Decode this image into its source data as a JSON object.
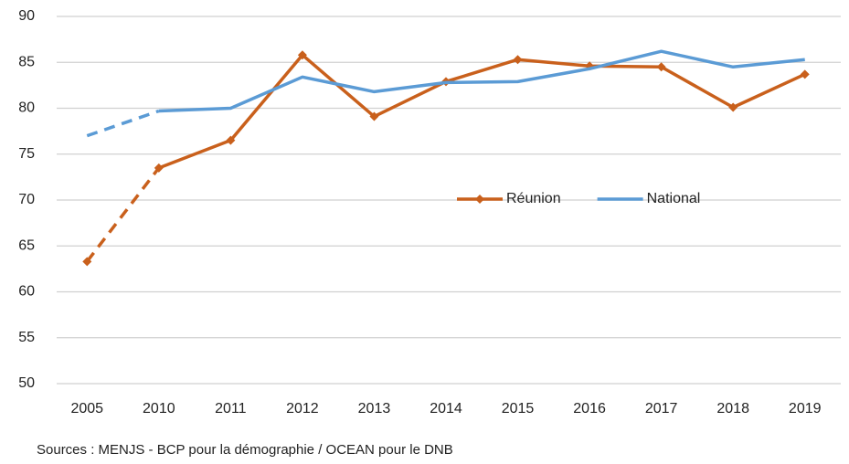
{
  "chart_data": {
    "type": "line",
    "categories": [
      "2005",
      "2010",
      "2011",
      "2012",
      "2013",
      "2014",
      "2015",
      "2016",
      "2017",
      "2018",
      "2019"
    ],
    "series": [
      {
        "name": "Réunion",
        "color": "#c9601c",
        "marker": true,
        "dashed_segments": [
          0
        ],
        "values": [
          63.3,
          73.5,
          76.5,
          85.8,
          79.1,
          82.9,
          85.3,
          84.6,
          84.5,
          80.1,
          83.7
        ]
      },
      {
        "name": "National",
        "color": "#5b9bd5",
        "marker": false,
        "dashed_segments": [
          0
        ],
        "values": [
          77.0,
          79.7,
          80.0,
          83.4,
          81.8,
          82.8,
          82.9,
          84.3,
          86.2,
          84.5,
          85.3
        ]
      }
    ],
    "ylim": [
      50,
      90
    ],
    "yticks": [
      50,
      55,
      60,
      65,
      70,
      75,
      80,
      85,
      90
    ],
    "grid": true,
    "legend": "center-right",
    "source": "Sources : MENJS - BCP pour la démographie / OCEAN pour le DNB"
  }
}
